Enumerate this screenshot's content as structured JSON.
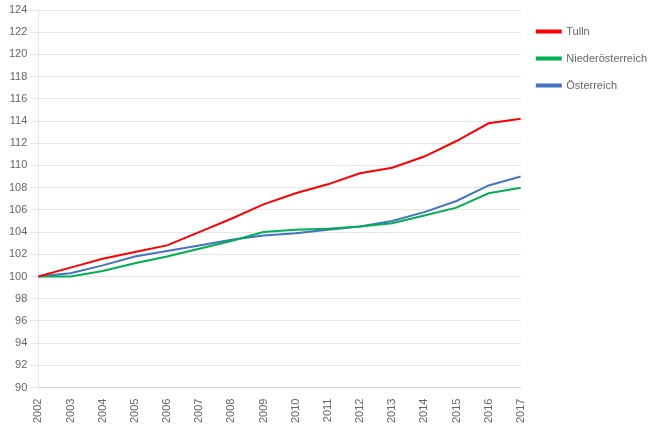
{
  "chart_data": {
    "type": "line",
    "x": [
      2002,
      2003,
      2004,
      2005,
      2006,
      2007,
      2008,
      2009,
      2010,
      2011,
      2012,
      2013,
      2014,
      2015,
      2016,
      2017
    ],
    "series": [
      {
        "name": "Tulln",
        "color": "#ff0000",
        "values": [
          100.0,
          100.8,
          101.6,
          102.2,
          102.8,
          104.0,
          105.2,
          106.5,
          107.5,
          108.3,
          109.3,
          109.8,
          110.8,
          112.2,
          113.8,
          114.2
        ]
      },
      {
        "name": "Niederösterreich",
        "color": "#00b050",
        "values": [
          100.0,
          100.0,
          100.5,
          101.2,
          101.8,
          102.5,
          103.2,
          104.0,
          104.2,
          104.3,
          104.5,
          104.8,
          105.5,
          106.2,
          107.5,
          108.0
        ]
      },
      {
        "name": "Österreich",
        "color": "#4472c4",
        "values": [
          100.0,
          100.3,
          101.0,
          101.8,
          102.3,
          102.8,
          103.3,
          103.7,
          103.9,
          104.2,
          104.5,
          105.0,
          105.8,
          106.8,
          108.2,
          109.0
        ]
      }
    ],
    "xlim": [
      2002,
      2017
    ],
    "xticks": [
      2002,
      2003,
      2004,
      2005,
      2006,
      2007,
      2008,
      2009,
      2010,
      2011,
      2012,
      2013,
      2014,
      2015,
      2016,
      2017
    ],
    "ylim": [
      90,
      124
    ],
    "yticks": [
      90,
      92,
      94,
      96,
      98,
      100,
      102,
      104,
      106,
      108,
      110,
      112,
      114,
      116,
      118,
      120,
      122,
      124
    ],
    "grid": "y",
    "legend": "right"
  }
}
